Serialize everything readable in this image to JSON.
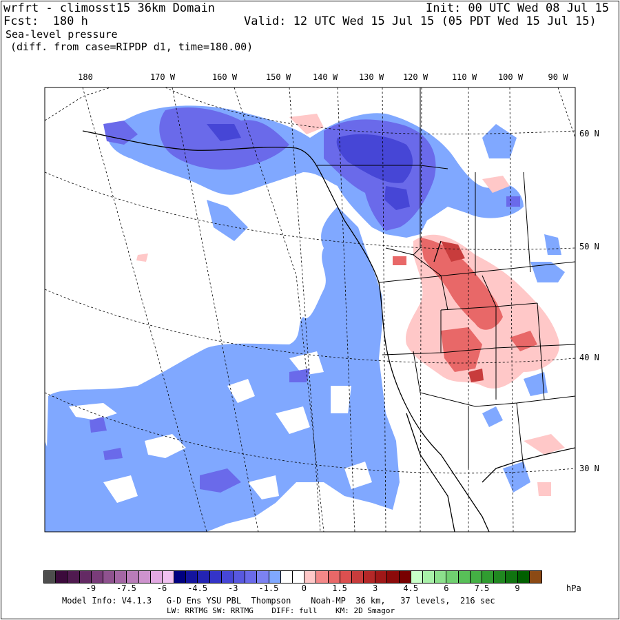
{
  "header": {
    "model_domain": "wrfrt - climosst15 36km Domain",
    "init": "Init: 00 UTC Wed 08 Jul 15",
    "forecast": "Fcst:  180 h",
    "valid": "Valid: 12 UTC Wed 15 Jul 15 (05 PDT Wed 15 Jul 15)",
    "field": "Sea-level pressure",
    "diff_note": "(diff. from case=RIPDP d1, time=180.00)"
  },
  "map": {
    "lon_labels": [
      "180",
      "170 W",
      "160 W",
      "150 W",
      "140 W",
      "130 W",
      "120 W",
      "110 W",
      "100 W",
      "90 W"
    ],
    "lat_labels": [
      "60 N",
      "50 N",
      "40 N",
      "30 N"
    ]
  },
  "colorbar": {
    "colors": [
      "#4d4d4d",
      "#3c0a3c",
      "#501a50",
      "#642a64",
      "#7a3c7a",
      "#8f528f",
      "#a466a4",
      "#b97cb9",
      "#ce93ce",
      "#e3a9e3",
      "#f0c0f0",
      "#000080",
      "#14149e",
      "#2424b4",
      "#3434c8",
      "#4646d6",
      "#5858e0",
      "#6a6aea",
      "#7c82f2",
      "#80a8ff",
      "#ffffff",
      "#ffffff",
      "#ffc8c8",
      "#f48888",
      "#e86868",
      "#dc5050",
      "#c83c3c",
      "#b42828",
      "#a01818",
      "#8c0a0a",
      "#780000",
      "#c8ffc8",
      "#a8f0a8",
      "#8ce08c",
      "#70d070",
      "#58c058",
      "#44b044",
      "#309c30",
      "#208820",
      "#107410",
      "#006000",
      "#8c4a14"
    ],
    "tick_labels": [
      "-9",
      "-7.5",
      "-6",
      "-4.5",
      "-3",
      "-1.5",
      "0",
      "1.5",
      "3",
      "4.5",
      "6",
      "7.5",
      "9",
      "hPa"
    ]
  },
  "footer": {
    "line1": "Model Info: V4.1.3   G-D Ens YSU PBL  Thompson    Noah-MP  36 km,   37 levels,  216 sec",
    "line2": "LW: RRTMG SW: RRTMG    DIFF: full    KM: 2D Smagor"
  }
}
